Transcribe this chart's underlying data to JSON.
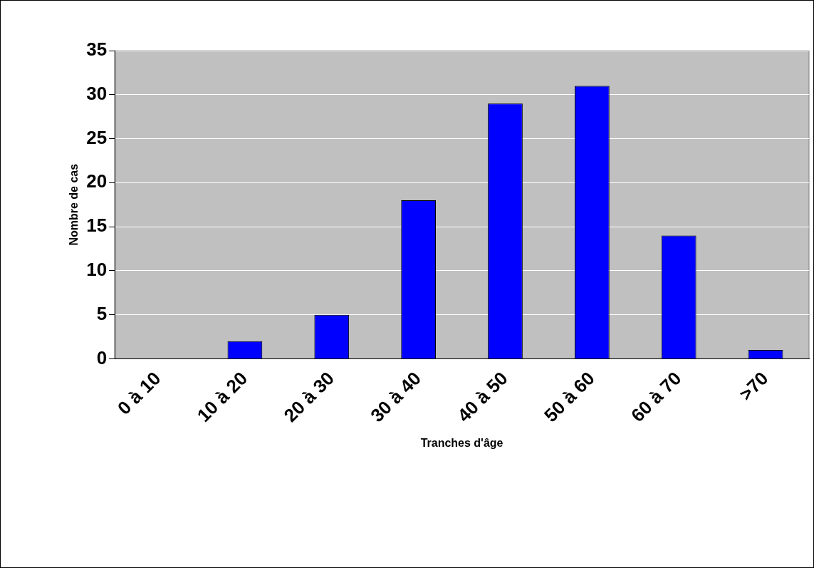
{
  "chart_data": {
    "type": "bar",
    "xlabel": "Tranches d'âge",
    "ylabel": "Nombre de cas",
    "categories": [
      "0 à 10",
      "10 à 20",
      "20 à 30",
      "30 à 40",
      "40 à 50",
      "50 à 60",
      "60 à 70",
      ">70"
    ],
    "values": [
      0,
      2,
      5,
      18,
      29,
      31,
      14,
      1
    ],
    "color": "#0000ff",
    "ylim": [
      0,
      35
    ],
    "yticks": [
      0,
      5,
      10,
      15,
      20,
      25,
      30,
      35
    ],
    "grid": "y"
  }
}
